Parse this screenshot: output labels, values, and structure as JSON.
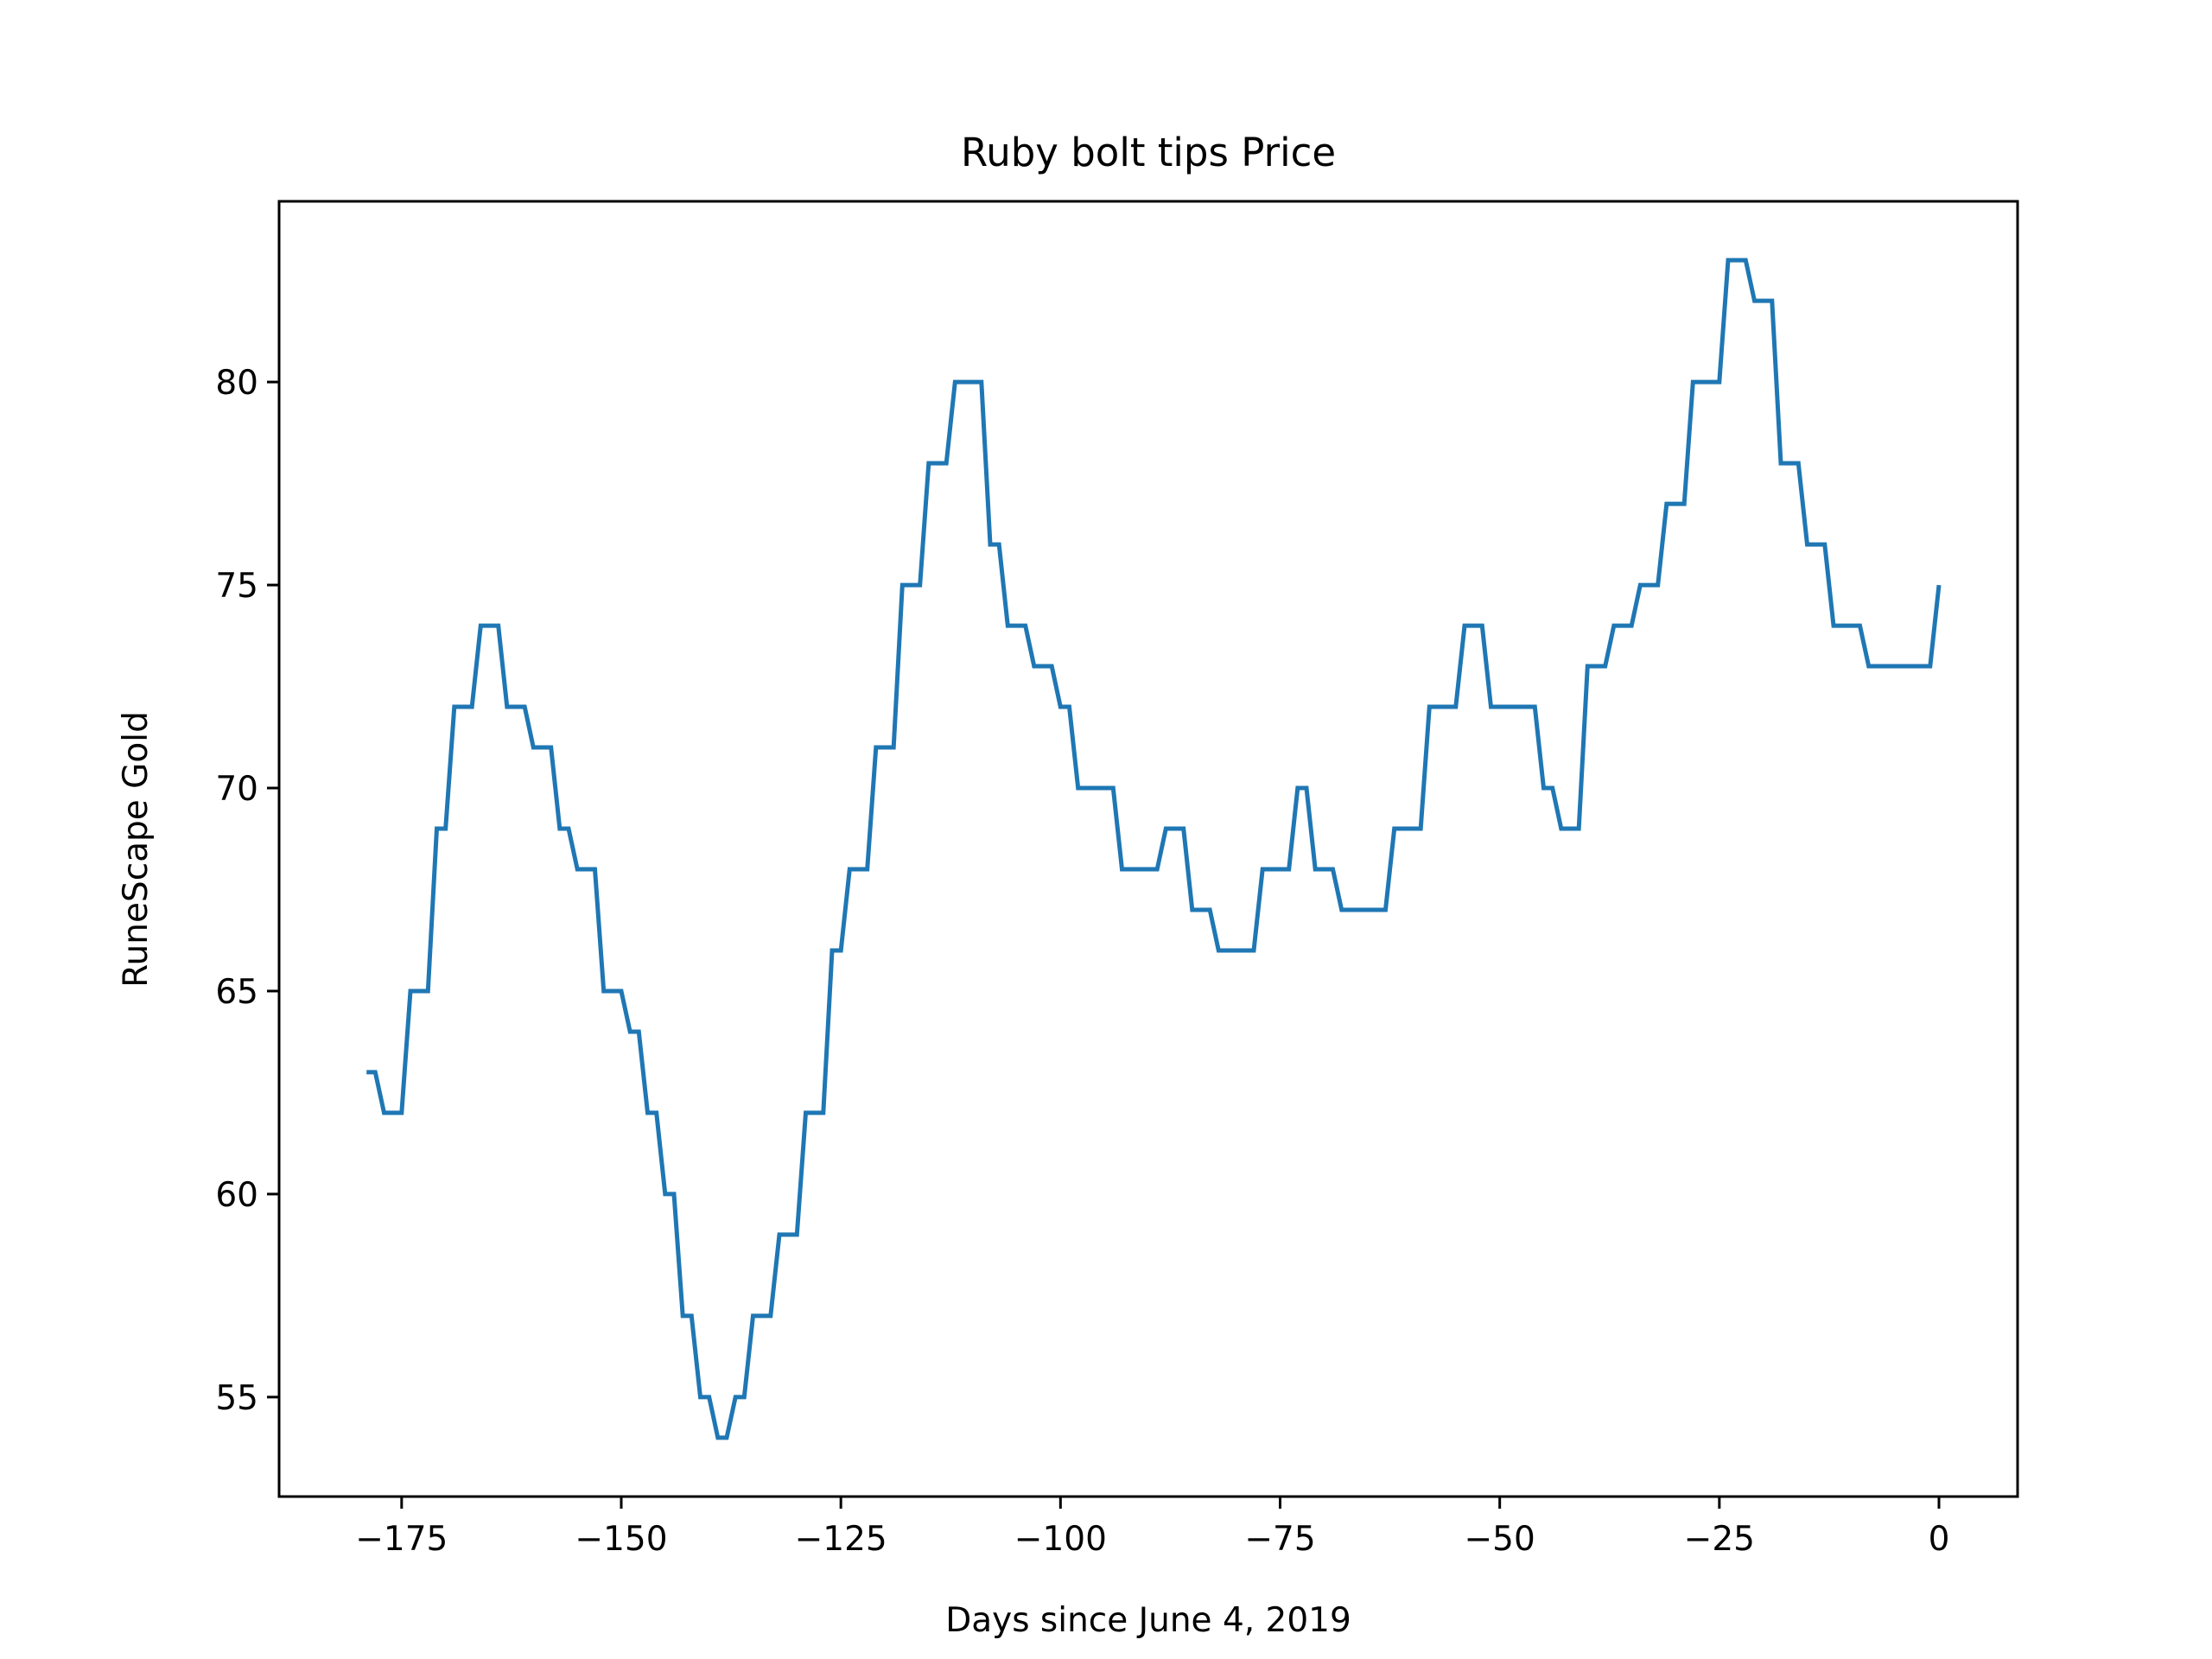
{
  "chart_data": {
    "type": "line",
    "title": "Ruby bolt tips Price",
    "xlabel": "Days since June 4, 2019",
    "ylabel": "RuneScape Gold",
    "xlim": [
      -188.95,
      8.95
    ],
    "ylim": [
      52.55,
      84.45
    ],
    "xticks": [
      -175,
      -150,
      -125,
      -100,
      -75,
      -50,
      -25,
      0
    ],
    "xtick_labels": [
      "−175",
      "−150",
      "−125",
      "−100",
      "−75",
      "−50",
      "−25",
      "0"
    ],
    "yticks": [
      55,
      60,
      65,
      70,
      75,
      80
    ],
    "ytick_labels": [
      "55",
      "60",
      "65",
      "70",
      "75",
      "80"
    ],
    "grid": false,
    "legend": "none",
    "line_color": "#1f77b4",
    "series": [
      {
        "x": [
          -179,
          -178,
          -177,
          -176,
          -175,
          -174,
          -173,
          -172,
          -171,
          -170,
          -169,
          -168,
          -167,
          -166,
          -165,
          -164,
          -163,
          -162,
          -161,
          -160,
          -159,
          -158,
          -157,
          -156,
          -155,
          -154,
          -153,
          -152,
          -151,
          -150,
          -149,
          -148,
          -147,
          -146,
          -145,
          -144,
          -143,
          -142,
          -141,
          -140,
          -139,
          -138,
          -137,
          -136,
          -135,
          -134,
          -133,
          -132,
          -131,
          -130,
          -129,
          -128,
          -127,
          -126,
          -125,
          -124,
          -123,
          -122,
          -121,
          -120,
          -119,
          -118,
          -117,
          -116,
          -115,
          -114,
          -113,
          -112,
          -111,
          -110,
          -109,
          -108,
          -107,
          -106,
          -105,
          -104,
          -103,
          -102,
          -101,
          -100,
          -99,
          -98,
          -97,
          -96,
          -95,
          -94,
          -93,
          -92,
          -91,
          -90,
          -89,
          -88,
          -87,
          -86,
          -85,
          -84,
          -83,
          -82,
          -81,
          -80,
          -79,
          -78,
          -77,
          -76,
          -75,
          -74,
          -73,
          -72,
          -71,
          -70,
          -69,
          -68,
          -67,
          -66,
          -65,
          -64,
          -63,
          -62,
          -61,
          -60,
          -59,
          -58,
          -57,
          -56,
          -55,
          -54,
          -53,
          -52,
          -51,
          -50,
          -49,
          -48,
          -47,
          -46,
          -45,
          -44,
          -43,
          -42,
          -41,
          -40,
          -39,
          -38,
          -37,
          -36,
          -35,
          -34,
          -33,
          -32,
          -31,
          -30,
          -29,
          -28,
          -27,
          -26,
          -25,
          -24,
          -23,
          -22,
          -21,
          -20,
          -19,
          -18,
          -17,
          -16,
          -15,
          -14,
          -13,
          -12,
          -11,
          -10,
          -9,
          -8,
          -7,
          -6,
          -5,
          -4,
          -3,
          -2,
          -1,
          0
        ],
        "y": [
          63,
          63,
          62,
          62,
          62,
          65,
          65,
          65,
          69,
          69,
          72,
          72,
          72,
          74,
          74,
          74,
          72,
          72,
          72,
          71,
          71,
          71,
          69,
          69,
          68,
          68,
          68,
          65,
          65,
          65,
          64,
          64,
          62,
          62,
          60,
          60,
          57,
          57,
          55,
          55,
          54,
          54,
          55,
          55,
          57,
          57,
          57,
          59,
          59,
          59,
          62,
          62,
          62,
          66,
          66,
          68,
          68,
          68,
          71,
          71,
          71,
          75,
          75,
          75,
          78,
          78,
          78,
          80,
          80,
          80,
          80,
          76,
          76,
          74,
          74,
          74,
          73,
          73,
          73,
          72,
          72,
          70,
          70,
          70,
          70,
          70,
          68,
          68,
          68,
          68,
          68,
          69,
          69,
          69,
          67,
          67,
          67,
          66,
          66,
          66,
          66,
          66,
          68,
          68,
          68,
          68,
          70,
          70,
          68,
          68,
          68,
          67,
          67,
          67,
          67,
          67,
          67,
          69,
          69,
          69,
          69,
          72,
          72,
          72,
          72,
          74,
          74,
          74,
          72,
          72,
          72,
          72,
          72,
          72,
          70,
          70,
          69,
          69,
          69,
          73,
          73,
          73,
          74,
          74,
          74,
          75,
          75,
          75,
          77,
          77,
          77,
          80,
          80,
          80,
          80,
          83,
          83,
          83,
          82,
          82,
          82,
          78,
          78,
          78,
          76,
          76,
          76,
          74,
          74,
          74,
          74,
          73,
          73,
          73,
          73,
          73,
          73,
          73,
          73,
          75
        ]
      }
    ]
  }
}
